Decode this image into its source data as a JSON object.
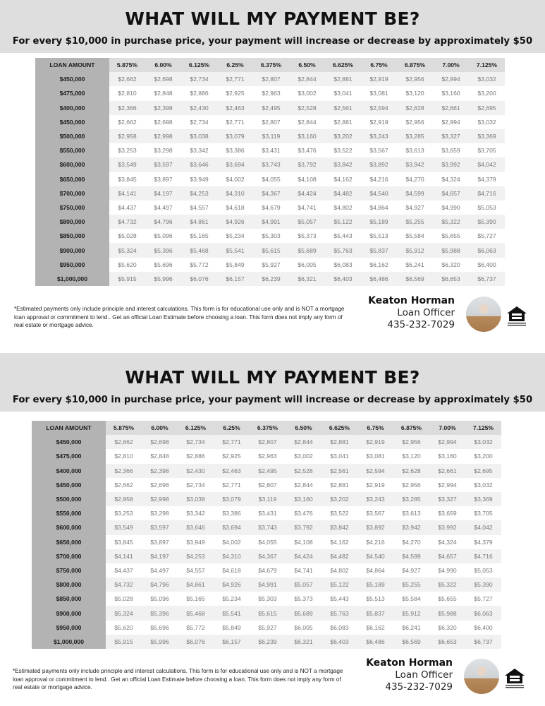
{
  "flyer": {
    "title": "WHAT WILL MY PAYMENT BE?",
    "subtitle": "For every $10,000 in purchase price, your payment will increase or decrease by approximately $50",
    "table": {
      "header_label": "LOAN AMOUNT",
      "rates": [
        "5.875%",
        "6.00%",
        "6.125%",
        "6.25%",
        "6.375%",
        "6.50%",
        "6.625%",
        "6.75%",
        "6.875%",
        "7.00%",
        "7.125%"
      ],
      "rows": [
        {
          "amount": "$450,000",
          "values": [
            "$2,662",
            "$2,698",
            "$2,734",
            "$2,771",
            "$2,807",
            "$2,844",
            "$2,881",
            "$2,919",
            "$2,956",
            "$2,994",
            "$3,032"
          ]
        },
        {
          "amount": "$475,000",
          "values": [
            "$2,810",
            "$2,848",
            "$2,886",
            "$2,925",
            "$2,963",
            "$3,002",
            "$3,041",
            "$3,081",
            "$3,120",
            "$3,160",
            "$3,200"
          ]
        },
        {
          "amount": "$400,000",
          "values": [
            "$2,366",
            "$2,398",
            "$2,430",
            "$2,463",
            "$2,495",
            "$2,528",
            "$2,561",
            "$2,594",
            "$2,628",
            "$2,661",
            "$2,695"
          ]
        },
        {
          "amount": "$450,000",
          "values": [
            "$2,662",
            "$2,698",
            "$2,734",
            "$2,771",
            "$2,807",
            "$2,844",
            "$2,881",
            "$2,919",
            "$2,956",
            "$2,994",
            "$3,032"
          ]
        },
        {
          "amount": "$500,000",
          "values": [
            "$2,958",
            "$2,998",
            "$3,038",
            "$3,079",
            "$3,119",
            "$3,160",
            "$3,202",
            "$3,243",
            "$3,285",
            "$3,327",
            "$3,369"
          ]
        },
        {
          "amount": "$550,000",
          "values": [
            "$3,253",
            "$3,298",
            "$3,342",
            "$3,386",
            "$3,431",
            "$3,476",
            "$3,522",
            "$3,567",
            "$3,613",
            "$3,659",
            "$3,705"
          ]
        },
        {
          "amount": "$600,000",
          "values": [
            "$3,549",
            "$3,597",
            "$3,646",
            "$3,694",
            "$3,743",
            "$3,792",
            "$3,842",
            "$3,892",
            "$3,942",
            "$3,992",
            "$4,042"
          ]
        },
        {
          "amount": "$650,000",
          "values": [
            "$3,845",
            "$3,897",
            "$3,949",
            "$4,002",
            "$4,055",
            "$4,108",
            "$4,162",
            "$4,216",
            "$4,270",
            "$4,324",
            "$4,379"
          ]
        },
        {
          "amount": "$700,000",
          "values": [
            "$4,141",
            "$4,197",
            "$4,253",
            "$4,310",
            "$4,367",
            "$4,424",
            "$4,482",
            "$4,540",
            "$4,599",
            "$4,657",
            "$4,716"
          ]
        },
        {
          "amount": "$750,000",
          "values": [
            "$4,437",
            "$4,497",
            "$4,557",
            "$4,618",
            "$4,679",
            "$4,741",
            "$4,802",
            "$4,864",
            "$4,927",
            "$4,990",
            "$5,053"
          ]
        },
        {
          "amount": "$800,000",
          "values": [
            "$4,732",
            "$4,796",
            "$4,861",
            "$4,926",
            "$4,991",
            "$5,057",
            "$5,122",
            "$5,189",
            "$5,255",
            "$5,322",
            "$5,390"
          ]
        },
        {
          "amount": "$850,000",
          "values": [
            "$5,028",
            "$5,096",
            "$5,165",
            "$5,234",
            "$5,303",
            "$5,373",
            "$5,443",
            "$5,513",
            "$5,584",
            "$5,655",
            "$5,727"
          ]
        },
        {
          "amount": "$900,000",
          "values": [
            "$5,324",
            "$5,396",
            "$5,468",
            "$5,541",
            "$5,615",
            "$5,689",
            "$5,763",
            "$5,837",
            "$5,912",
            "$5,988",
            "$6,063"
          ]
        },
        {
          "amount": "$950,000",
          "values": [
            "$5,620",
            "$5,696",
            "$5,772",
            "$5,849",
            "$5,927",
            "$6,005",
            "$6,083",
            "$6,162",
            "$6,241",
            "$6,320",
            "$6,400"
          ]
        },
        {
          "amount": "$1,000,000",
          "values": [
            "$5,915",
            "$5,996",
            "$6,076",
            "$6,157",
            "$6,239",
            "$6,321",
            "$6,403",
            "$6,486",
            "$6,569",
            "$6,653",
            "$6,737"
          ]
        }
      ]
    },
    "disclaimer": "*Estimated payments only include principle and interest calculations. This form is for educational use only and is NOT a mortgage loan approval or commitment to lend.. Get an official Loan Estimate before choosing a loan.   This form does not imply any form of real estate or mortgage advice.",
    "contact": {
      "name": "Keaton Horman",
      "role": "Loan Officer",
      "phone": "435-232-7029"
    },
    "logo_text": "EQUAL HOUSING OPPORTUNITY",
    "icons": {
      "photo": "headshot-photo",
      "logo": "equal-housing-icon"
    },
    "colors": {
      "band": "#dedede",
      "header_row": "#dcdcdc",
      "amount_column": "#b3b3b3",
      "alt_row": "#f1f1f1"
    }
  }
}
